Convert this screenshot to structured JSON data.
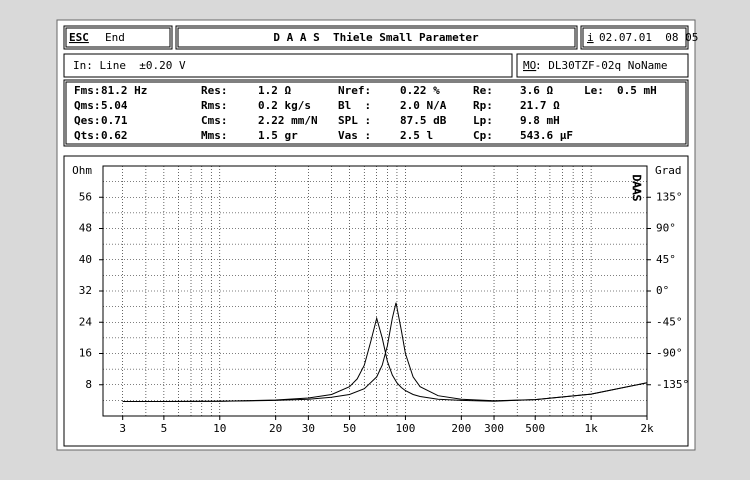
{
  "header": {
    "esc": "ESC",
    "end": "End",
    "title": "D A A S  Thiele Small Parameter",
    "info_key": "i",
    "datetime": "02.07.01  08 05"
  },
  "status": {
    "input": "In: Line  ±0.20 V",
    "model_key": "MO",
    "model": ": DL30TZF-02q NoName"
  },
  "params": [
    [
      [
        "Fms:",
        "81.2 Hz"
      ],
      [
        "Res:",
        "1.2 Ω"
      ],
      [
        "Nref:",
        "0.22 %"
      ],
      [
        "Re:",
        "3.6 Ω"
      ],
      [
        "Le:",
        "0.5 mH"
      ]
    ],
    [
      [
        "Qms:",
        "5.04"
      ],
      [
        "Rms:",
        "0.2 kg/s"
      ],
      [
        "Bl  :",
        "2.0 N/A"
      ],
      [
        "Rp:",
        "21.7 Ω"
      ]
    ],
    [
      [
        "Qes:",
        "0.71"
      ],
      [
        "Cms:",
        "2.22 mm/N"
      ],
      [
        "SPL :",
        "87.5 dB"
      ],
      [
        "Lp:",
        "9.8 mH"
      ]
    ],
    [
      [
        "Qts:",
        "0.62"
      ],
      [
        "Mms:",
        "1.5 gr"
      ],
      [
        "Vas :",
        "2.5 l"
      ],
      [
        "Cp:",
        "543.6 µF"
      ]
    ]
  ],
  "chart_data": {
    "type": "line",
    "y_label": "Ohm",
    "y2_label": "Grad",
    "logo": "DAAS",
    "xscale": "log",
    "xlim": [
      2.35,
      2000
    ],
    "xticks": [
      3,
      5,
      10,
      20,
      30,
      50,
      100,
      200,
      300,
      500,
      {
        "value": 1000,
        "label": "1k"
      },
      {
        "value": 2000,
        "label": "2k"
      }
    ],
    "xgrid": [
      3,
      4,
      5,
      6,
      7,
      8,
      9,
      10,
      20,
      30,
      40,
      50,
      60,
      70,
      80,
      90,
      100,
      200,
      300,
      400,
      500,
      600,
      700,
      800,
      900,
      1000
    ],
    "ylim": [
      0,
      64
    ],
    "yticks": [
      8,
      16,
      24,
      32,
      40,
      48,
      56
    ],
    "ygrid": [
      4,
      8,
      12,
      16,
      20,
      24,
      28,
      32,
      36,
      40,
      44,
      48,
      52,
      56,
      60
    ],
    "y2lim": [
      -180,
      180
    ],
    "y2ticks": [
      {
        "value": 135,
        "label": "135°"
      },
      {
        "value": 90,
        "label": "90°"
      },
      {
        "value": 45,
        "label": "45°"
      },
      {
        "value": 0,
        "label": "0°"
      },
      {
        "value": -45,
        "label": "-45°"
      },
      {
        "value": -90,
        "label": "-90°"
      },
      {
        "value": -135,
        "label": "-135°"
      }
    ],
    "grid": true,
    "series": [
      {
        "color": "#000000",
        "x": [
          3,
          5,
          10,
          20,
          30,
          40,
          50,
          55,
          60,
          65,
          70,
          75,
          80,
          85,
          90,
          95,
          100,
          110,
          120,
          150,
          200,
          300,
          500,
          1000,
          2000
        ],
        "values": [
          3.7,
          3.7,
          3.8,
          4.1,
          4.6,
          5.5,
          7.5,
          9.5,
          13,
          19,
          25,
          20,
          14,
          10.5,
          8.5,
          7.3,
          6.5,
          5.5,
          5,
          4.3,
          4,
          3.8,
          4.2,
          5.6,
          8.5
        ]
      },
      {
        "color": "#000000",
        "x": [
          3,
          5,
          10,
          20,
          30,
          40,
          50,
          60,
          70,
          75,
          80,
          85,
          89,
          95,
          100,
          110,
          120,
          150,
          200,
          300,
          500,
          1000,
          2000
        ],
        "values": [
          3.7,
          3.7,
          3.8,
          4,
          4.3,
          4.8,
          5.5,
          7,
          10,
          13,
          18,
          25,
          29,
          22,
          16,
          10,
          7.5,
          5.2,
          4.3,
          3.9,
          4.2,
          5.6,
          8.5
        ]
      }
    ]
  }
}
